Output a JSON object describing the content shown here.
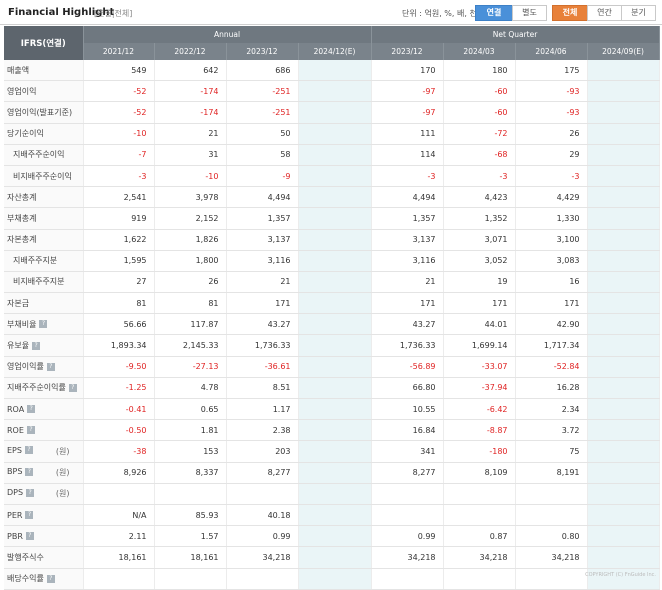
{
  "header": {
    "title": "Financial Highlight",
    "subtitle": "[연결|전체]",
    "unit": "단위 : 억원, %, 배, 천주",
    "toggle1": [
      "연결",
      "별도"
    ],
    "toggle2": [
      "전체",
      "연간",
      "분기"
    ]
  },
  "table": {
    "corner": "IFRS(연결)",
    "group_annual": "Annual",
    "group_quarter": "Net Quarter",
    "columns": [
      "2021/12",
      "2022/12",
      "2023/12",
      "2024/12(E)",
      "2023/12",
      "2024/03",
      "2024/06",
      "2024/09(E)"
    ],
    "rows": [
      {
        "label": "매출액",
        "values": [
          "549",
          "642",
          "686",
          "",
          "170",
          "180",
          "175",
          ""
        ]
      },
      {
        "label": "영업이익",
        "values": [
          "-52",
          "-174",
          "-251",
          "",
          "-97",
          "-60",
          "-93",
          ""
        ]
      },
      {
        "label": "영업이익(발표기준)",
        "values": [
          "-52",
          "-174",
          "-251",
          "",
          "-97",
          "-60",
          "-93",
          ""
        ]
      },
      {
        "label": "당기순이익",
        "values": [
          "-10",
          "21",
          "50",
          "",
          "111",
          "-72",
          "26",
          ""
        ]
      },
      {
        "label": "지배주주순이익",
        "sub": true,
        "values": [
          "-7",
          "31",
          "58",
          "",
          "114",
          "-68",
          "29",
          ""
        ]
      },
      {
        "label": "비지배주주순이익",
        "sub": true,
        "values": [
          "-3",
          "-10",
          "-9",
          "",
          "-3",
          "-3",
          "-3",
          ""
        ]
      },
      {
        "label": "자산총계",
        "values": [
          "2,541",
          "3,978",
          "4,494",
          "",
          "4,494",
          "4,423",
          "4,429",
          ""
        ]
      },
      {
        "label": "부채총계",
        "values": [
          "919",
          "2,152",
          "1,357",
          "",
          "1,357",
          "1,352",
          "1,330",
          ""
        ]
      },
      {
        "label": "자본총계",
        "values": [
          "1,622",
          "1,826",
          "3,137",
          "",
          "3,137",
          "3,071",
          "3,100",
          ""
        ]
      },
      {
        "label": "지배주주지분",
        "sub": true,
        "values": [
          "1,595",
          "1,800",
          "3,116",
          "",
          "3,116",
          "3,052",
          "3,083",
          ""
        ]
      },
      {
        "label": "비지배주주지분",
        "sub": true,
        "values": [
          "27",
          "26",
          "21",
          "",
          "21",
          "19",
          "16",
          ""
        ]
      },
      {
        "label": "자본금",
        "values": [
          "81",
          "81",
          "171",
          "",
          "171",
          "171",
          "171",
          ""
        ]
      },
      {
        "label": "부채비율",
        "help": true,
        "values": [
          "56.66",
          "117.87",
          "43.27",
          "",
          "43.27",
          "44.01",
          "42.90",
          ""
        ]
      },
      {
        "label": "유보율",
        "help": true,
        "values": [
          "1,893.34",
          "2,145.33",
          "1,736.33",
          "",
          "1,736.33",
          "1,699.14",
          "1,717.34",
          ""
        ]
      },
      {
        "label": "영업이익률",
        "help": true,
        "values": [
          "-9.50",
          "-27.13",
          "-36.61",
          "",
          "-56.89",
          "-33.07",
          "-52.84",
          ""
        ]
      },
      {
        "label": "지배주주순이익률",
        "help": true,
        "values": [
          "-1.25",
          "4.78",
          "8.51",
          "",
          "66.80",
          "-37.94",
          "16.28",
          ""
        ]
      },
      {
        "label": "ROA",
        "help": true,
        "values": [
          "-0.41",
          "0.65",
          "1.17",
          "",
          "10.55",
          "-6.42",
          "2.34",
          ""
        ]
      },
      {
        "label": "ROE",
        "help": true,
        "values": [
          "-0.50",
          "1.81",
          "2.38",
          "",
          "16.84",
          "-8.87",
          "3.72",
          ""
        ]
      },
      {
        "label": "EPS",
        "help": true,
        "unit": "(원)",
        "values": [
          "-38",
          "153",
          "203",
          "",
          "341",
          "-180",
          "75",
          ""
        ]
      },
      {
        "label": "BPS",
        "help": true,
        "unit": "(원)",
        "values": [
          "8,926",
          "8,337",
          "8,277",
          "",
          "8,277",
          "8,109",
          "8,191",
          ""
        ]
      },
      {
        "label": "DPS",
        "help": true,
        "unit": "(원)",
        "values": [
          "",
          "",
          "",
          "",
          "",
          "",
          "",
          ""
        ]
      },
      {
        "label": "PER",
        "help": true,
        "values": [
          "N/A",
          "85.93",
          "40.18",
          "",
          "",
          "",
          "",
          ""
        ]
      },
      {
        "label": "PBR",
        "help": true,
        "values": [
          "2.11",
          "1.57",
          "0.99",
          "",
          "0.99",
          "0.87",
          "0.80",
          ""
        ]
      },
      {
        "label": "발행주식수",
        "values": [
          "18,161",
          "18,161",
          "34,218",
          "",
          "34,218",
          "34,218",
          "34,218",
          ""
        ]
      },
      {
        "label": "배당수익률",
        "help": true,
        "values": [
          "",
          "",
          "",
          "",
          "",
          "",
          "",
          ""
        ]
      }
    ]
  },
  "footer": {
    "copyright": "COPYRIGHT (C) FnGuide Inc."
  }
}
